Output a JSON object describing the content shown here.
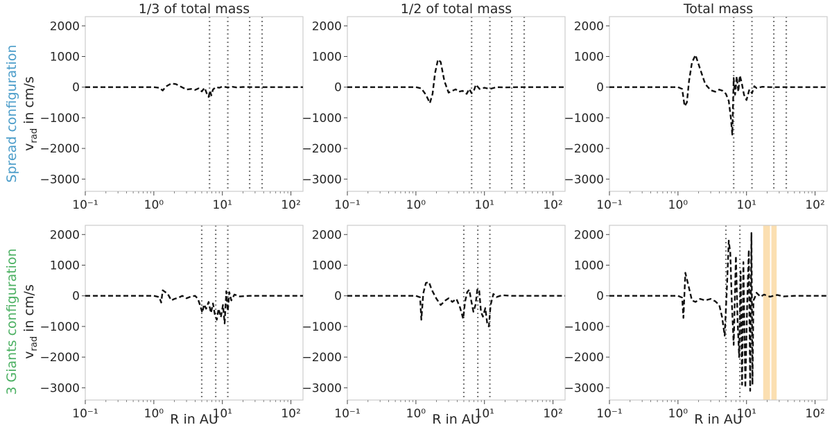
{
  "figure": {
    "row_labels": [
      {
        "prefix": "Spread configuration",
        "color": "#4a9cc9"
      },
      {
        "prefix": "3 Giants configuration",
        "color": "#4bb062"
      }
    ],
    "ylabel_main": "v",
    "ylabel_sub": "rad",
    "ylabel_rest": " in cm/s",
    "xlabel": "R in AU"
  },
  "chart_data": [
    {
      "type": "line",
      "row": 0,
      "col": 0,
      "title": "1/3 of total mass",
      "xscale": "log",
      "xlim": [
        0.1,
        150
      ],
      "ylim": [
        -3400,
        2300
      ],
      "yticks": [
        "2000",
        "1000",
        "0",
        "−1000",
        "−2000",
        "−3000"
      ],
      "ytick_values": [
        2000,
        1000,
        0,
        -1000,
        -2000,
        -3000
      ],
      "xticks": [
        "10⁻¹",
        "10⁰",
        "10¹",
        "10²"
      ],
      "xtick_values": [
        0.1,
        1,
        10,
        100
      ],
      "vlines": [
        6.5,
        12,
        25,
        38
      ],
      "shaded": [],
      "series": [
        {
          "style": "dashed",
          "x": [
            0.1,
            0.5,
            1.0,
            1.2,
            1.35,
            1.5,
            1.8,
            2.1,
            2.5,
            3.0,
            3.5,
            4.0,
            4.5,
            5.0,
            5.5,
            6.0,
            6.3,
            6.6,
            6.9,
            7.3,
            8.0,
            9.0,
            10,
            12,
            14,
            16,
            20,
            30,
            50,
            80,
            150
          ],
          "y": [
            0,
            0,
            0,
            -20,
            -110,
            20,
            120,
            100,
            10,
            -80,
            -60,
            -90,
            -40,
            -140,
            -20,
            -240,
            -320,
            -120,
            -270,
            -80,
            0,
            -20,
            20,
            -10,
            10,
            -10,
            5,
            0,
            0,
            0,
            0
          ]
        }
      ]
    },
    {
      "type": "line",
      "row": 0,
      "col": 1,
      "title": "1/2 of total mass",
      "xscale": "log",
      "xlim": [
        0.1,
        150
      ],
      "ylim": [
        -3400,
        2300
      ],
      "yticks": [
        "2000",
        "1000",
        "0",
        "−1000",
        "−2000",
        "−3000"
      ],
      "ytick_values": [
        2000,
        1000,
        0,
        -1000,
        -2000,
        -3000
      ],
      "xticks": [
        "10⁻¹",
        "10⁰",
        "10¹",
        "10²"
      ],
      "xtick_values": [
        0.1,
        1,
        10,
        100
      ],
      "vlines": [
        6.5,
        12,
        25,
        38
      ],
      "shaded": [],
      "series": [
        {
          "style": "dashed",
          "x": [
            0.1,
            0.5,
            1.0,
            1.2,
            1.4,
            1.6,
            1.75,
            1.9,
            2.1,
            2.3,
            2.6,
            3.0,
            3.4,
            3.8,
            4.2,
            4.8,
            5.5,
            6.0,
            6.5,
            7.0,
            7.5,
            8.5,
            10,
            12,
            15,
            20,
            30,
            60,
            150
          ],
          "y": [
            0,
            0,
            0,
            -40,
            -250,
            -520,
            -220,
            450,
            900,
            820,
            200,
            -180,
            -120,
            -70,
            -150,
            -120,
            -220,
            -60,
            -200,
            -120,
            80,
            -60,
            -20,
            -60,
            0,
            -10,
            0,
            0,
            0
          ]
        }
      ]
    },
    {
      "type": "line",
      "row": 0,
      "col": 2,
      "title": "Total mass",
      "xscale": "log",
      "xlim": [
        0.1,
        150
      ],
      "ylim": [
        -3400,
        2300
      ],
      "yticks": [
        "2000",
        "1000",
        "0",
        "−1000",
        "−2000",
        "−3000"
      ],
      "ytick_values": [
        2000,
        1000,
        0,
        -1000,
        -2000,
        -3000
      ],
      "xticks": [
        "10⁻¹",
        "10⁰",
        "10¹",
        "10²"
      ],
      "xtick_values": [
        0.1,
        1,
        10,
        100
      ],
      "vlines": [
        6.5,
        12,
        25,
        38
      ],
      "shaded": [],
      "series": [
        {
          "style": "dashed",
          "x": [
            0.1,
            0.5,
            1.0,
            1.15,
            1.25,
            1.35,
            1.45,
            1.6,
            1.8,
            2.1,
            2.5,
            3.0,
            3.5,
            4.0,
            4.5,
            5.0,
            5.5,
            5.9,
            6.2,
            6.5,
            6.8,
            7.2,
            7.6,
            8.0,
            8.5,
            9.2,
            10,
            11,
            12,
            13,
            14,
            17,
            22,
            30,
            60,
            150
          ],
          "y": [
            0,
            0,
            0,
            -60,
            -620,
            -500,
            200,
            800,
            1050,
            600,
            100,
            -100,
            -150,
            -80,
            -120,
            -220,
            -450,
            -1000,
            -1550,
            300,
            -250,
            350,
            -150,
            380,
            150,
            -250,
            -420,
            -80,
            -200,
            30,
            -30,
            10,
            0,
            0,
            0,
            0
          ]
        }
      ]
    },
    {
      "type": "line",
      "row": 1,
      "col": 0,
      "title": "",
      "xscale": "log",
      "xlim": [
        0.1,
        150
      ],
      "ylim": [
        -3400,
        2300
      ],
      "yticks": [
        "2000",
        "1000",
        "0",
        "−1000",
        "−2000",
        "−3000"
      ],
      "ytick_values": [
        2000,
        1000,
        0,
        -1000,
        -2000,
        -3000
      ],
      "xticks": [
        "10⁻¹",
        "10⁰",
        "10¹",
        "10²"
      ],
      "xtick_values": [
        0.1,
        1,
        10,
        100
      ],
      "vlines": [
        5.0,
        8.0,
        12.0
      ],
      "shaded": [],
      "series": [
        {
          "style": "dashed",
          "x": [
            0.1,
            0.5,
            1.0,
            1.2,
            1.28,
            1.35,
            1.45,
            1.6,
            1.8,
            2.0,
            2.3,
            2.6,
            3.0,
            3.5,
            4.0,
            4.4,
            4.8,
            5.1,
            5.4,
            5.8,
            6.3,
            6.8,
            7.3,
            7.8,
            8.3,
            8.8,
            9.5,
            10.2,
            10.8,
            11.4,
            12,
            12.6,
            13.5,
            15,
            18,
            25,
            40,
            150
          ],
          "y": [
            0,
            0,
            0,
            -40,
            -220,
            180,
            130,
            60,
            -150,
            -100,
            -60,
            0,
            -80,
            -20,
            0,
            -100,
            -350,
            -550,
            -280,
            -420,
            -200,
            -560,
            -250,
            -640,
            -780,
            -420,
            -700,
            -300,
            -900,
            150,
            -500,
            120,
            -150,
            40,
            -20,
            0,
            0,
            0
          ]
        }
      ]
    },
    {
      "type": "line",
      "row": 1,
      "col": 1,
      "title": "",
      "xscale": "log",
      "xlim": [
        0.1,
        150
      ],
      "ylim": [
        -3400,
        2300
      ],
      "yticks": [
        "2000",
        "1000",
        "0",
        "−1000",
        "−2000",
        "−3000"
      ],
      "ytick_values": [
        2000,
        1000,
        0,
        -1000,
        -2000,
        -3000
      ],
      "xticks": [
        "10⁻¹",
        "10⁰",
        "10¹",
        "10²"
      ],
      "xtick_values": [
        0.1,
        1,
        10,
        100
      ],
      "vlines": [
        5.0,
        8.0,
        12.0
      ],
      "shaded": [],
      "series": [
        {
          "style": "dashed",
          "x": [
            0.1,
            0.5,
            1.0,
            1.15,
            1.2,
            1.28,
            1.4,
            1.55,
            1.7,
            2.0,
            2.3,
            2.7,
            3.0,
            3.4,
            3.9,
            4.4,
            4.9,
            5.2,
            5.6,
            6.0,
            6.4,
            6.9,
            7.4,
            7.9,
            8.4,
            8.9,
            9.5,
            10.3,
            11.0,
            11.6,
            12.3,
            13.5,
            15,
            18,
            25,
            40,
            150
          ],
          "y": [
            0,
            0,
            0,
            -50,
            -780,
            80,
            420,
            450,
            200,
            -100,
            -300,
            -150,
            -80,
            -200,
            -100,
            -380,
            -750,
            -200,
            120,
            200,
            -150,
            -520,
            -300,
            230,
            160,
            -520,
            -680,
            -400,
            -920,
            -1000,
            -300,
            60,
            -40,
            20,
            0,
            0,
            0
          ]
        }
      ]
    },
    {
      "type": "line",
      "row": 1,
      "col": 2,
      "title": "",
      "xscale": "log",
      "xlim": [
        0.1,
        150
      ],
      "ylim": [
        -3400,
        2300
      ],
      "yticks": [
        "2000",
        "1000",
        "0",
        "−1000",
        "−2000",
        "−3000"
      ],
      "ytick_values": [
        2000,
        1000,
        0,
        -1000,
        -2000,
        -3000
      ],
      "xticks": [
        "10⁻¹",
        "10⁰",
        "10¹",
        "10²"
      ],
      "xtick_values": [
        0.1,
        1,
        10,
        100
      ],
      "vlines": [
        5.0,
        8.0
      ],
      "shaded": [
        [
          17.5,
          22
        ],
        [
          23,
          27.5
        ]
      ],
      "series": [
        {
          "style": "dashed",
          "x": [
            0.1,
            0.5,
            1.0,
            1.15,
            1.2,
            1.28,
            1.45,
            1.6,
            1.8,
            2.1,
            2.5,
            3.0,
            3.5,
            4.0,
            4.4,
            4.8,
            5.2,
            5.5,
            5.8,
            6.1,
            6.5,
            7.0,
            7.4,
            7.8,
            8.2,
            8.6,
            9.0,
            9.6,
            10.2,
            10.8,
            11.3,
            11.8,
            12.2,
            12.6,
            13.2,
            14,
            16,
            18,
            22,
            28,
            35,
            50,
            75,
            90,
            150
          ],
          "y": [
            0,
            0,
            0,
            -60,
            -720,
            750,
            250,
            -150,
            -200,
            -100,
            -150,
            -100,
            -180,
            -300,
            -700,
            -1300,
            400,
            1800,
            1400,
            -200,
            -1600,
            1300,
            -800,
            -2000,
            800,
            -2900,
            1100,
            -3000,
            -300,
            1500,
            -3100,
            2050,
            -2900,
            -150,
            -60,
            100,
            -30,
            40,
            -30,
            30,
            -20,
            0,
            0,
            0,
            0
          ]
        }
      ]
    }
  ]
}
